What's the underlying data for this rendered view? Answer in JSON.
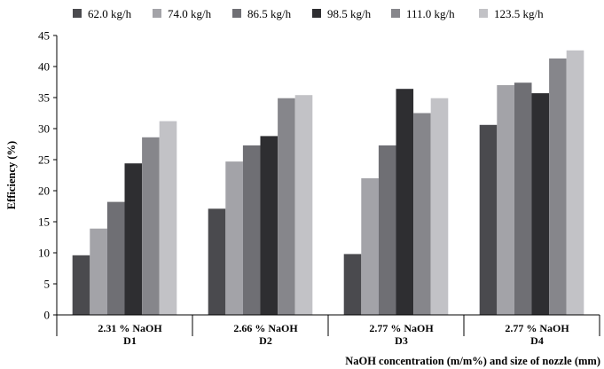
{
  "chart_data": {
    "type": "bar",
    "categories": [
      [
        "2.31 % NaOH",
        "D1"
      ],
      [
        "2.66 % NaOH",
        "D2"
      ],
      [
        "2.77 % NaOH",
        "D3"
      ],
      [
        "2.77 % NaOH",
        "D4"
      ]
    ],
    "series": [
      {
        "name": "62.0 kg/h",
        "color": "#4a4a4e",
        "values": [
          9.6,
          17.1,
          9.8,
          30.6
        ]
      },
      {
        "name": "74.0 kg/h",
        "color": "#a3a3a8",
        "values": [
          13.9,
          24.7,
          22.0,
          37.0
        ]
      },
      {
        "name": "86.5 kg/h",
        "color": "#6f6f74",
        "values": [
          18.2,
          27.3,
          27.3,
          37.4
        ]
      },
      {
        "name": "98.5 kg/h",
        "color": "#2e2e31",
        "values": [
          24.4,
          28.8,
          36.4,
          35.7
        ]
      },
      {
        "name": "111.0 kg/h",
        "color": "#86868b",
        "values": [
          28.6,
          34.9,
          32.5,
          41.3
        ]
      },
      {
        "name": "123.5 kg/h",
        "color": "#c2c2c6",
        "values": [
          31.2,
          35.4,
          34.9,
          42.6
        ]
      }
    ],
    "title": "",
    "xlabel": "NaOH concentration (m/m%) and size of nozzle (mm)",
    "ylabel": "Efficiency (%)",
    "ylim": [
      0,
      45
    ],
    "ytick_step": 5,
    "legend_position": "top",
    "grid": false
  }
}
